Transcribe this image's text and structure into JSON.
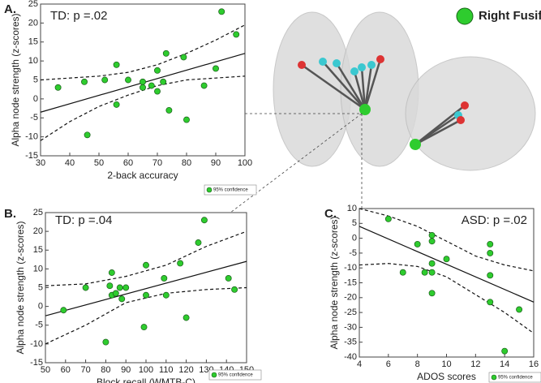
{
  "chart_data": [
    {
      "type": "scatter",
      "panel_label": "A.",
      "annotation": "TD: p =.02",
      "x_label": "2-back accuracy",
      "y_label": "Alpha node strength (z-scores)",
      "xlim": [
        30,
        100
      ],
      "xticks": [
        30,
        40,
        50,
        60,
        70,
        80,
        90,
        100
      ],
      "ylim": [
        -15,
        25
      ],
      "yticks": [
        -15,
        -10,
        -5,
        0,
        5,
        10,
        15,
        20,
        25
      ],
      "series": [
        {
          "name": "95% confidence",
          "color": "#2ecc2e",
          "x": [
            36,
            45,
            46,
            52,
            56,
            56,
            60,
            65,
            65,
            68,
            70,
            70,
            72,
            73,
            74,
            79,
            80,
            86,
            90,
            92,
            97
          ],
          "values": [
            3,
            4.5,
            -9.5,
            5,
            9,
            -1.5,
            5,
            4.5,
            3,
            3.5,
            2,
            7.5,
            4.5,
            12,
            -3,
            11,
            -5.5,
            3.5,
            8,
            23,
            17
          ]
        }
      ],
      "fit": {
        "x": [
          30,
          100
        ],
        "values": [
          -3.5,
          12
        ]
      },
      "ci_upper": {
        "x": [
          30,
          50,
          60,
          70,
          80,
          90,
          100
        ],
        "values": [
          5,
          6,
          7,
          9,
          12,
          15.5,
          19.5
        ]
      },
      "ci_lower": {
        "x": [
          30,
          40,
          50,
          60,
          70,
          80,
          90,
          100
        ],
        "values": [
          -11,
          -6,
          -2,
          1,
          3.5,
          5,
          5.5,
          6
        ]
      }
    },
    {
      "type": "scatter",
      "panel_label": "B.",
      "annotation": "TD: p =.04",
      "x_label": "Block recall (WMTB-C)",
      "y_label": "Alpha node strength (z-scores)",
      "xlim": [
        50,
        150
      ],
      "xticks": [
        50,
        60,
        70,
        80,
        90,
        100,
        110,
        120,
        130,
        140,
        150
      ],
      "ylim": [
        -15,
        25
      ],
      "yticks": [
        -15,
        -10,
        -5,
        0,
        5,
        10,
        15,
        20,
        25
      ],
      "series": [
        {
          "name": "95% confidence",
          "color": "#2ecc2e",
          "x": [
            59,
            70,
            80,
            82,
            83,
            83,
            85,
            87,
            88,
            90,
            99,
            100,
            100,
            109,
            110,
            117,
            120,
            126,
            129,
            141,
            144
          ],
          "values": [
            -1,
            5,
            -9.5,
            5.5,
            9,
            3,
            3.5,
            5,
            2,
            5,
            -5.5,
            11,
            3,
            7.5,
            3,
            11.5,
            -3,
            17,
            23,
            7.5,
            4.5
          ]
        }
      ],
      "fit": {
        "x": [
          50,
          150
        ],
        "values": [
          -2.5,
          12
        ]
      },
      "ci_upper": {
        "x": [
          50,
          70,
          90,
          110,
          130,
          150
        ],
        "values": [
          5.5,
          6,
          8,
          11,
          16,
          20
        ]
      },
      "ci_lower": {
        "x": [
          50,
          70,
          90,
          110,
          130,
          150
        ],
        "values": [
          -10,
          -5,
          1,
          3.5,
          4.5,
          5
        ]
      }
    },
    {
      "type": "scatter",
      "panel_label": "C.",
      "annotation": "ASD: p =.02",
      "x_label": "ADOS scores",
      "y_label": "Alpha node strength (z-scores)",
      "xlim": [
        4,
        16
      ],
      "xticks": [
        4,
        6,
        8,
        10,
        12,
        14,
        16
      ],
      "ylim": [
        -40,
        10
      ],
      "yticks": [
        -40,
        -35,
        -30,
        -25,
        -20,
        -15,
        -10,
        -5,
        0,
        5,
        10
      ],
      "series": [
        {
          "name": "95% confidence",
          "color": "#2ecc2e",
          "x": [
            6,
            7,
            8,
            8.5,
            9,
            9,
            9,
            9,
            9,
            10,
            13,
            13,
            13,
            13,
            14,
            15
          ],
          "values": [
            6.5,
            -11.5,
            -2,
            -11.5,
            1,
            -1,
            -8.5,
            -11.5,
            -18.5,
            -7,
            -2,
            -5,
            -12.5,
            -21.5,
            -38,
            -24
          ]
        }
      ],
      "fit": {
        "x": [
          4,
          16
        ],
        "values": [
          4,
          -21.5
        ]
      },
      "ci_upper": {
        "x": [
          4,
          6,
          8,
          10,
          12,
          14,
          16
        ],
        "values": [
          10,
          7.5,
          4,
          -1,
          -6,
          -9,
          -11
        ]
      },
      "ci_lower": {
        "x": [
          4,
          6,
          8,
          10,
          12,
          14,
          16
        ],
        "values": [
          -9,
          -8.5,
          -9.5,
          -13,
          -19,
          -25,
          -32
        ]
      }
    }
  ],
  "brain_legend": "Right Fusiform"
}
